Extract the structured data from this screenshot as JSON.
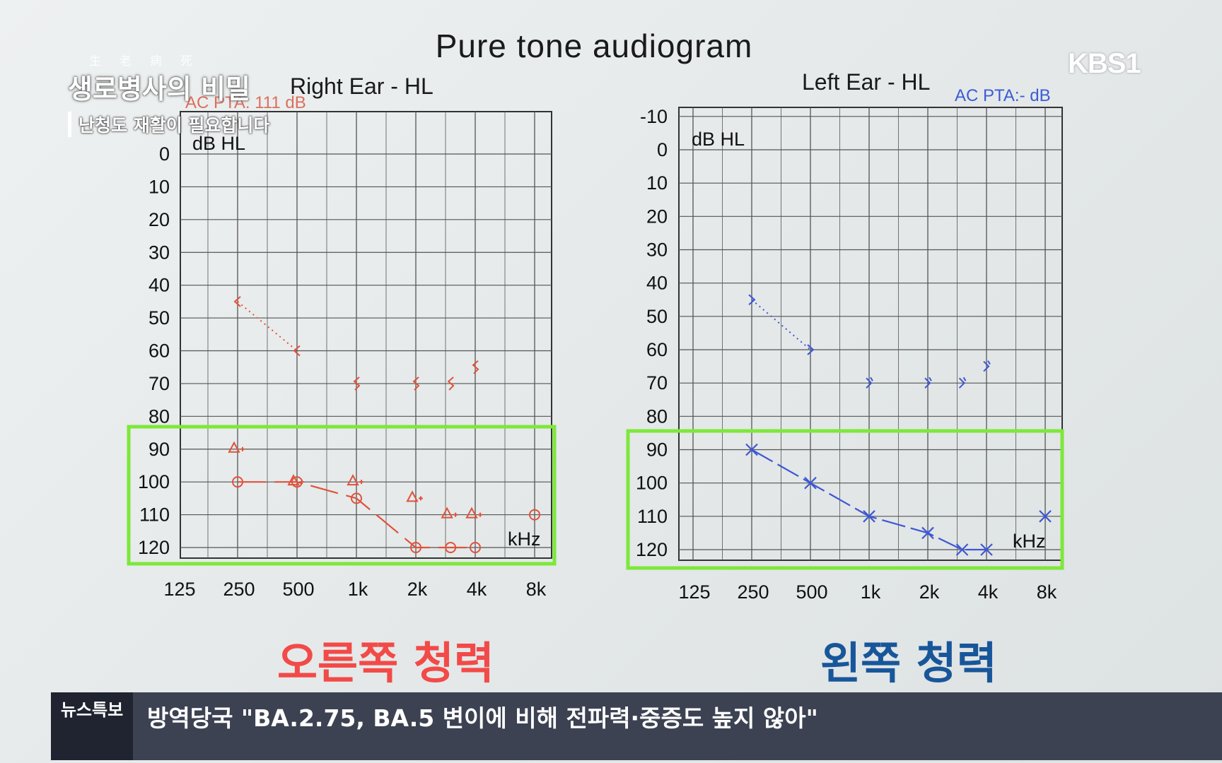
{
  "page": {
    "main_title": "Pure tone audiogram",
    "right_caption": "오른쪽 청력",
    "left_caption": "왼쪽 청력"
  },
  "overlay": {
    "show_hanja": "生老病死",
    "show_title": "생로병사의 비밀",
    "show_subtitle": "난청도 재활이 필요합니다",
    "channel_logo": "KBS1"
  },
  "ticker": {
    "label": "뉴스특보",
    "headline": "방역당국 \"BA.2.75, BA.5 변이에 비해 전파력·중증도 높지 않아\""
  },
  "colors": {
    "right": "#e0523c",
    "left": "#3d57d6",
    "highlight": "#7de83a",
    "grid": "#555555"
  },
  "chart_data": [
    {
      "type": "line",
      "id": "right",
      "title": "Right Ear - HL",
      "annotation": "AC PTA: 111 dB",
      "ylabel": "dB HL",
      "xunit": "kHz",
      "x_ticks": [
        "125",
        "250",
        "500",
        "1k",
        "2k",
        "4k",
        "8k"
      ],
      "y_ticks": [
        0,
        10,
        20,
        30,
        40,
        50,
        60,
        70,
        80,
        90,
        100,
        110,
        120
      ],
      "ylim": [
        -5,
        125
      ],
      "y_inverted": true,
      "grid": true,
      "series": [
        {
          "name": "AC",
          "marker": "circle",
          "line": "solid",
          "points": [
            [
              250,
              100
            ],
            [
              500,
              100
            ],
            [
              1000,
              105
            ],
            [
              2000,
              120
            ],
            [
              3000,
              120
            ],
            [
              4000,
              120
            ]
          ]
        },
        {
          "marker": "circle",
          "line": "none",
          "points": [
            [
              8000,
              110
            ]
          ]
        },
        {
          "marker": "masked-triangle",
          "line": "none",
          "points": [
            [
              250,
              90
            ],
            [
              500,
              100
            ],
            [
              1000,
              100
            ],
            [
              2000,
              105
            ],
            [
              3000,
              110
            ],
            [
              4000,
              110
            ]
          ]
        },
        {
          "marker": "bc-bracket",
          "line": "dotted",
          "points": [
            [
              250,
              45
            ],
            [
              500,
              60
            ]
          ]
        },
        {
          "marker": "bc-masked",
          "line": "none",
          "points": [
            [
              1000,
              70
            ],
            [
              2000,
              70
            ],
            [
              3000,
              70
            ],
            [
              4000,
              65
            ]
          ]
        }
      ]
    },
    {
      "type": "line",
      "id": "left",
      "title": "Left Ear - HL",
      "annotation": "AC PTA:- dB",
      "ylabel": "dB HL",
      "xunit": "kHz",
      "x_ticks": [
        "125",
        "250",
        "500",
        "1k",
        "2k",
        "4k",
        "8k"
      ],
      "y_ticks": [
        -10,
        0,
        10,
        20,
        30,
        40,
        50,
        60,
        70,
        80,
        90,
        100,
        110,
        120
      ],
      "ylim": [
        -10,
        125
      ],
      "y_inverted": true,
      "grid": true,
      "series": [
        {
          "name": "AC",
          "marker": "x",
          "line": "solid",
          "points": [
            [
              250,
              90
            ],
            [
              500,
              100
            ],
            [
              1000,
              110
            ],
            [
              2000,
              115
            ],
            [
              3000,
              120
            ],
            [
              4000,
              120
            ]
          ]
        },
        {
          "marker": "x",
          "line": "none",
          "points": [
            [
              8000,
              110
            ]
          ]
        },
        {
          "marker": "bc-bracket",
          "line": "dotted",
          "points": [
            [
              250,
              45
            ],
            [
              500,
              60
            ]
          ]
        },
        {
          "marker": "bc-masked",
          "line": "none",
          "points": [
            [
              1000,
              70
            ],
            [
              2000,
              70
            ],
            [
              3000,
              70
            ],
            [
              4000,
              65
            ]
          ]
        }
      ]
    }
  ]
}
